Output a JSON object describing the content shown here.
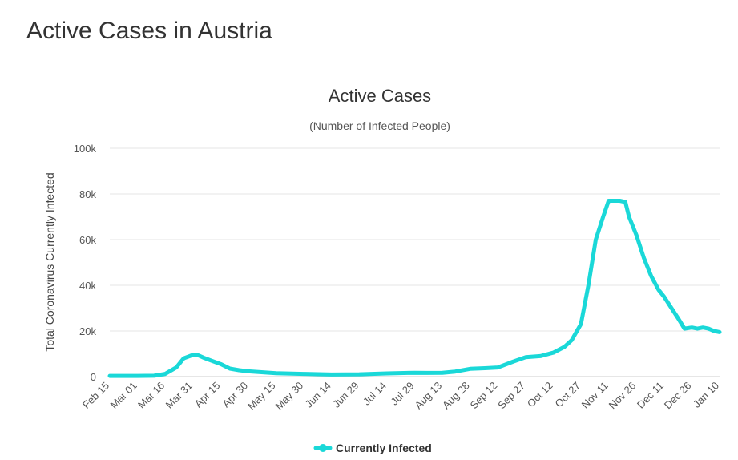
{
  "page": {
    "heading": "Active Cases in Austria"
  },
  "chart_data": {
    "type": "line",
    "title": "Active Cases",
    "subtitle": "(Number of Infected People)",
    "ylabel": "Total Coronavirus Currently Infected",
    "xlabel": "",
    "y_axis": {
      "min": 0,
      "max": 100000,
      "ticks": [
        0,
        20000,
        40000,
        60000,
        80000,
        100000
      ],
      "tick_labels": [
        "0",
        "20k",
        "40k",
        "60k",
        "80k",
        "100k"
      ]
    },
    "x_axis": {
      "start": "Feb 15",
      "end": "Jan 10",
      "tick_labels": [
        "Feb 15",
        "Mar 01",
        "Mar 16",
        "Mar 31",
        "Apr 15",
        "Apr 30",
        "May 15",
        "May 30",
        "Jun 14",
        "Jun 29",
        "Jul 14",
        "Jul 29",
        "Aug 13",
        "Aug 28",
        "Sep 12",
        "Sep 27",
        "Oct 12",
        "Oct 27",
        "Nov 11",
        "Nov 26",
        "Dec 11",
        "Dec 26",
        "Jan 10"
      ]
    },
    "grid": "horizontal",
    "legend_position": "bottom-center",
    "series": [
      {
        "name": "Currently Infected",
        "color": "#1ad8d8",
        "x": [
          "Feb 15",
          "Mar 01",
          "Mar 10",
          "Mar 16",
          "Mar 22",
          "Mar 26",
          "Mar 31",
          "Apr 03",
          "Apr 06",
          "Apr 10",
          "Apr 15",
          "Apr 20",
          "Apr 25",
          "Apr 30",
          "May 15",
          "May 30",
          "Jun 14",
          "Jun 29",
          "Jul 14",
          "Jul 29",
          "Aug 05",
          "Aug 13",
          "Aug 20",
          "Aug 28",
          "Sep 05",
          "Sep 12",
          "Sep 20",
          "Sep 27",
          "Oct 05",
          "Oct 12",
          "Oct 18",
          "Oct 22",
          "Oct 27",
          "Oct 31",
          "Nov 04",
          "Nov 08",
          "Nov 11",
          "Nov 14",
          "Nov 17",
          "Nov 20",
          "Nov 22",
          "Nov 26",
          "Nov 30",
          "Dec 04",
          "Dec 08",
          "Dec 11",
          "Dec 15",
          "Dec 19",
          "Dec 22",
          "Dec 26",
          "Dec 29",
          "Jan 01",
          "Jan 04",
          "Jan 07",
          "Jan 10"
        ],
        "values": [
          300,
          300,
          400,
          1200,
          4000,
          8000,
          9500,
          9300,
          8200,
          7000,
          5500,
          3500,
          2800,
          2300,
          1500,
          1200,
          900,
          1000,
          1400,
          1700,
          1600,
          1700,
          2200,
          3400,
          3700,
          4000,
          6500,
          8500,
          9000,
          10500,
          13000,
          16000,
          23000,
          40000,
          60000,
          70000,
          77000,
          77000,
          77000,
          76500,
          70000,
          62000,
          52000,
          44000,
          38000,
          35000,
          30000,
          25000,
          21000,
          21500,
          21000,
          21500,
          21000,
          20000,
          19500
        ]
      }
    ]
  }
}
